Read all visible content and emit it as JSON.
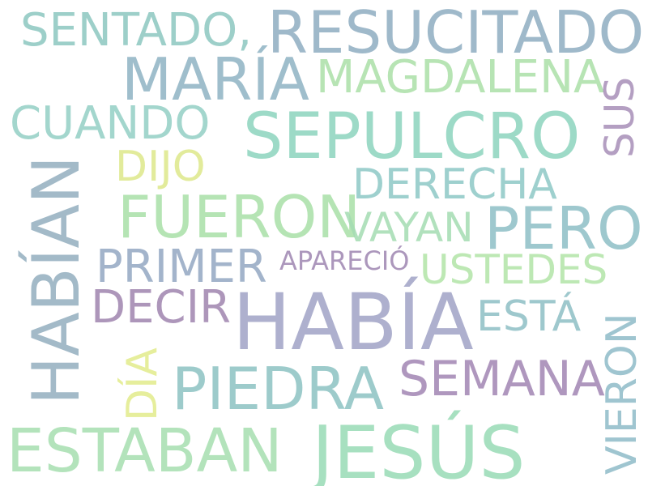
{
  "background": "#ffffff",
  "words": [
    {
      "id": "resucitado",
      "text": "RESUCITADO",
      "color": "#8fadc1",
      "orientation": "horizontal"
    },
    {
      "id": "sentado",
      "text": "SENTADO,",
      "color": "#8cc7c0",
      "orientation": "horizontal"
    },
    {
      "id": "maria",
      "text": "MARÍA",
      "color": "#8fb3c4",
      "orientation": "horizontal"
    },
    {
      "id": "magdalena",
      "text": "MAGDALENA",
      "color": "#abe0a8",
      "orientation": "horizontal"
    },
    {
      "id": "cuando",
      "text": "CUANDO",
      "color": "#93cfc5",
      "orientation": "horizontal"
    },
    {
      "id": "sepulcro",
      "text": "SEPULCRO",
      "color": "#8dd4be",
      "orientation": "horizontal"
    },
    {
      "id": "sus",
      "text": "SUS",
      "color": "#a78fb8",
      "orientation": "vertical"
    },
    {
      "id": "dijo",
      "text": "DIJO",
      "color": "#dde88a",
      "orientation": "horizontal"
    },
    {
      "id": "derecha",
      "text": "DERECHA",
      "color": "#8ec8c6",
      "orientation": "horizontal"
    },
    {
      "id": "habian",
      "text": "HABÍAN",
      "color": "#93aebf",
      "orientation": "vertical"
    },
    {
      "id": "fueron",
      "text": "FUERON",
      "color": "#a9e0a7",
      "orientation": "horizontal"
    },
    {
      "id": "vayan",
      "text": "VAYAN",
      "color": "#a4dcb2",
      "orientation": "horizontal"
    },
    {
      "id": "pero",
      "text": "PERO",
      "color": "#8ebfc6",
      "orientation": "horizontal"
    },
    {
      "id": "primer",
      "text": "PRIMER",
      "color": "#93a8c2",
      "orientation": "horizontal"
    },
    {
      "id": "aparecio",
      "text": "APARECIÓ",
      "color": "#9e86b1",
      "orientation": "horizontal"
    },
    {
      "id": "ustedes",
      "text": "USTEDES",
      "color": "#b2e5a8",
      "orientation": "horizontal"
    },
    {
      "id": "decir",
      "text": "DECIR",
      "color": "#9f84ae",
      "orientation": "horizontal"
    },
    {
      "id": "habia",
      "text": "HABÍA",
      "color": "#a0a3c6",
      "orientation": "horizontal"
    },
    {
      "id": "esta",
      "text": "ESTÁ",
      "color": "#8ebfc5",
      "orientation": "horizontal"
    },
    {
      "id": "vieron",
      "text": "VIERON",
      "color": "#8fbcc8",
      "orientation": "vertical"
    },
    {
      "id": "dia",
      "text": "DÍA",
      "color": "#e2ec8b",
      "orientation": "vertical"
    },
    {
      "id": "piedra",
      "text": "PIEDRA",
      "color": "#8cc3c3",
      "orientation": "horizontal"
    },
    {
      "id": "semana",
      "text": "SEMANA",
      "color": "#a286b3",
      "orientation": "horizontal"
    },
    {
      "id": "estaban",
      "text": "ESTABAN",
      "color": "#a6dfb0",
      "orientation": "horizontal"
    },
    {
      "id": "jesus",
      "text": "JESÚS",
      "color": "#98dbb6",
      "orientation": "horizontal"
    }
  ]
}
